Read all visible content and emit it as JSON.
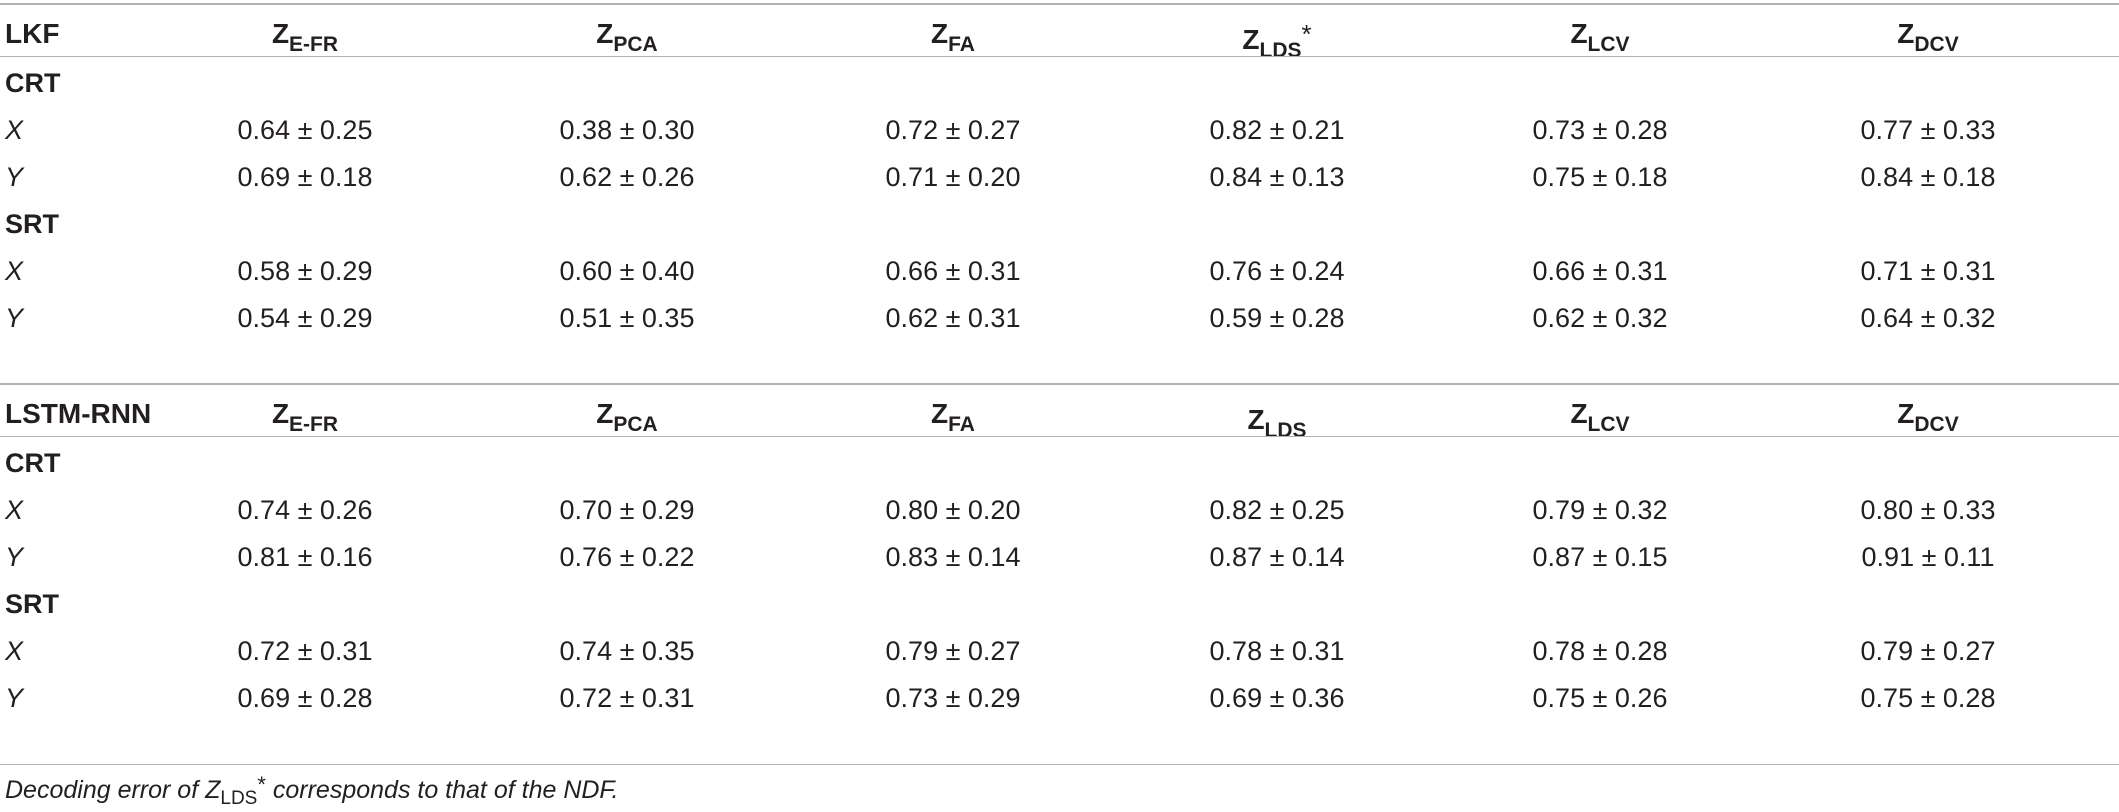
{
  "columns": [
    {
      "base": "Z",
      "sub": "E-FR"
    },
    {
      "base": "Z",
      "sub": "PCA"
    },
    {
      "base": "Z",
      "sub": "FA"
    },
    {
      "base": "Z",
      "sub": "LDS"
    },
    {
      "base": "Z",
      "sub": "LCV"
    },
    {
      "base": "Z",
      "sub": "DCV"
    }
  ],
  "blocks": [
    {
      "model": "LKF",
      "lds_mark": "*",
      "sections": [
        {
          "name": "CRT",
          "rows": [
            {
              "label": "X",
              "values": [
                "0.64 ± 0.25",
                "0.38 ± 0.30",
                "0.72 ± 0.27",
                "0.82 ± 0.21",
                "0.73 ± 0.28",
                "0.77 ± 0.33"
              ]
            },
            {
              "label": "Y",
              "values": [
                "0.69 ± 0.18",
                "0.62 ± 0.26",
                "0.71 ± 0.20",
                "0.84 ± 0.13",
                "0.75 ± 0.18",
                "0.84 ± 0.18"
              ]
            }
          ]
        },
        {
          "name": "SRT",
          "rows": [
            {
              "label": "X",
              "values": [
                "0.58 ± 0.29",
                "0.60 ± 0.40",
                "0.66 ± 0.31",
                "0.76 ± 0.24",
                "0.66 ± 0.31",
                "0.71 ± 0.31"
              ]
            },
            {
              "label": "Y",
              "values": [
                "0.54 ± 0.29",
                "0.51 ± 0.35",
                "0.62 ± 0.31",
                "0.59 ± 0.28",
                "0.62 ± 0.32",
                "0.64 ± 0.32"
              ]
            }
          ]
        }
      ]
    },
    {
      "model": "LSTM-RNN",
      "lds_mark": "",
      "sections": [
        {
          "name": "CRT",
          "rows": [
            {
              "label": "X",
              "values": [
                "0.74 ± 0.26",
                "0.70 ± 0.29",
                "0.80 ± 0.20",
                "0.82 ± 0.25",
                "0.79 ± 0.32",
                "0.80 ± 0.33"
              ]
            },
            {
              "label": "Y",
              "values": [
                "0.81 ± 0.16",
                "0.76 ± 0.22",
                "0.83 ± 0.14",
                "0.87 ± 0.14",
                "0.87 ± 0.15",
                "0.91 ± 0.11"
              ]
            }
          ]
        },
        {
          "name": "SRT",
          "rows": [
            {
              "label": "X",
              "values": [
                "0.72 ± 0.31",
                "0.74 ± 0.35",
                "0.79 ± 0.27",
                "0.78 ± 0.31",
                "0.78 ± 0.28",
                "0.79 ± 0.27"
              ]
            },
            {
              "label": "Y",
              "values": [
                "0.69 ± 0.28",
                "0.72 ± 0.31",
                "0.73 ± 0.29",
                "0.69 ± 0.36",
                "0.75 ± 0.26",
                "0.75 ± 0.28"
              ]
            }
          ]
        }
      ]
    }
  ],
  "footnote": {
    "prefix": "Decoding error of ",
    "base": "Z",
    "sub": "LDS",
    "mark": "*",
    "suffix": " corresponds to that of the NDF."
  }
}
